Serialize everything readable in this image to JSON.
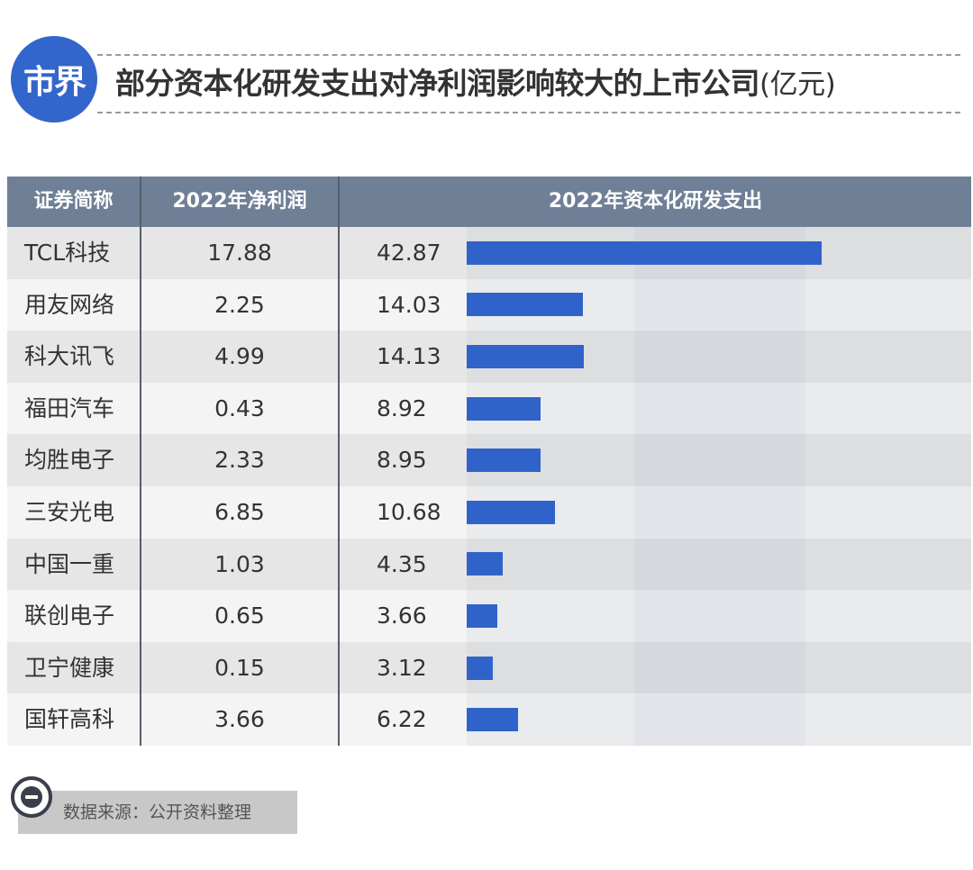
{
  "header": {
    "logo_text": "市界",
    "title": "部分资本化研发支出对净利润影响较大的上市公司",
    "unit": "(亿元)"
  },
  "chart_data": {
    "type": "table",
    "columns": [
      "证券简称",
      "2022年净利润",
      "2022年资本化研发支出"
    ],
    "rows": [
      {
        "name": "TCL科技",
        "profit": "17.88",
        "rd": "42.87"
      },
      {
        "name": "用友网络",
        "profit": "2.25",
        "rd": "14.03"
      },
      {
        "name": "科大讯飞",
        "profit": "4.99",
        "rd": "14.13"
      },
      {
        "name": "福田汽车",
        "profit": "0.43",
        "rd": "8.92"
      },
      {
        "name": "均胜电子",
        "profit": "2.33",
        "rd": "8.95"
      },
      {
        "name": "三安光电",
        "profit": "6.85",
        "rd": "10.68"
      },
      {
        "name": "中国一重",
        "profit": "1.03",
        "rd": "4.35"
      },
      {
        "name": "联创电子",
        "profit": "0.65",
        "rd": "3.66"
      },
      {
        "name": "卫宁健康",
        "profit": "0.15",
        "rd": "3.12"
      },
      {
        "name": "国轩高科",
        "profit": "3.66",
        "rd": "6.22"
      }
    ],
    "bar_series": "2022年资本化研发支出",
    "bar_color": "#2f63c9",
    "xlim": [
      0,
      61
    ]
  },
  "footer": {
    "source": "数据来源：公开资料整理",
    "icon": "minus-circle-icon"
  }
}
